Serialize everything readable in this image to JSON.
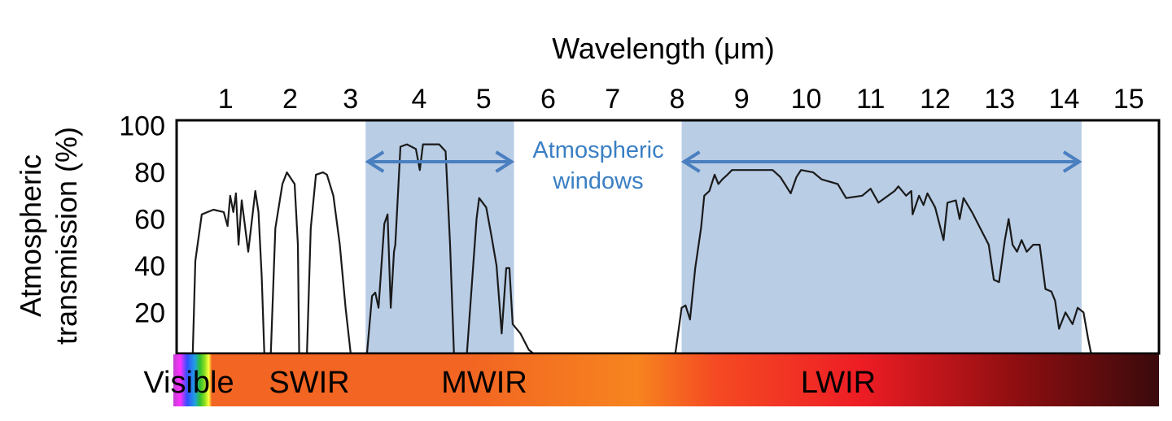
{
  "chart_data": {
    "type": "line",
    "title": "",
    "xlabel": "Wavelength (μm)",
    "ylabel_lines": [
      "Atmospheric",
      "transmission (%)"
    ],
    "xlim": [
      0.24,
      15.47
    ],
    "ylim": [
      2.4,
      102.3
    ],
    "x_ticks": [
      1,
      2,
      3,
      4,
      5,
      6,
      7,
      8,
      9,
      10,
      11,
      12,
      13,
      14,
      15
    ],
    "x_tick_labels": [
      "1",
      "2",
      "3",
      "4",
      "5",
      "6",
      "7",
      "8",
      "9",
      "10",
      "11",
      "12",
      "13",
      "14",
      "15"
    ],
    "y_ticks": [
      20,
      40,
      60,
      80,
      100
    ],
    "y_tick_labels": [
      "20",
      "40",
      "60",
      "80",
      "100"
    ],
    "grid": false,
    "windows": [
      {
        "name": "MWIR window",
        "range": [
          3.17,
          5.47
        ]
      },
      {
        "name": "LWIR window",
        "range": [
          8.07,
          14.27
        ]
      }
    ],
    "annotation": [
      "Atmospheric",
      "windows"
    ],
    "bands": [
      {
        "label": "Visible",
        "center": 0.5
      },
      {
        "label": "SWIR",
        "center": 2.3
      },
      {
        "label": "MWIR",
        "center": 5.0
      },
      {
        "label": "LWIR",
        "center": 10.5
      }
    ],
    "series": [
      {
        "name": "Atmospheric transmission",
        "segments": [
          [
            [
              0.49,
              2
            ],
            [
              0.53,
              42
            ],
            [
              0.63,
              62
            ],
            [
              0.81,
              64
            ],
            [
              0.97,
              63
            ],
            [
              1.03,
              57
            ],
            [
              1.07,
              70
            ],
            [
              1.12,
              63
            ],
            [
              1.16,
              71
            ],
            [
              1.2,
              49
            ],
            [
              1.25,
              68
            ],
            [
              1.35,
              46
            ],
            [
              1.46,
              72
            ],
            [
              1.51,
              63
            ],
            [
              1.56,
              35
            ],
            [
              1.6,
              2
            ]
          ],
          [
            [
              1.7,
              2
            ],
            [
              1.77,
              56
            ],
            [
              1.88,
              75
            ],
            [
              1.95,
              80
            ],
            [
              2.07,
              75
            ],
            [
              2.12,
              49
            ],
            [
              2.14,
              2
            ]
          ],
          [
            [
              2.26,
              2
            ],
            [
              2.32,
              56
            ],
            [
              2.4,
              79
            ],
            [
              2.51,
              80
            ],
            [
              2.57,
              79
            ],
            [
              2.67,
              70
            ],
            [
              2.77,
              49
            ],
            [
              2.86,
              22
            ],
            [
              2.94,
              2
            ]
          ],
          [
            [
              3.19,
              2
            ],
            [
              3.27,
              27
            ],
            [
              3.32,
              28.5
            ],
            [
              3.37,
              22
            ],
            [
              3.46,
              58
            ],
            [
              3.51,
              62
            ],
            [
              3.56,
              22
            ],
            [
              3.61,
              46
            ],
            [
              3.63,
              49
            ],
            [
              3.71,
              91
            ],
            [
              3.81,
              92
            ],
            [
              3.95,
              90
            ],
            [
              4.01,
              81
            ],
            [
              4.06,
              92
            ],
            [
              4.31,
              92
            ],
            [
              4.41,
              89
            ],
            [
              4.48,
              49
            ],
            [
              4.54,
              2
            ]
          ],
          [
            [
              4.74,
              2
            ],
            [
              4.89,
              60
            ],
            [
              4.93,
              69
            ],
            [
              5.04,
              65
            ],
            [
              5.12,
              53
            ],
            [
              5.2,
              40
            ],
            [
              5.28,
              11
            ],
            [
              5.35,
              39
            ],
            [
              5.4,
              39
            ],
            [
              5.45,
              15
            ],
            [
              5.57,
              11
            ],
            [
              5.7,
              4
            ],
            [
              5.79,
              2
            ]
          ],
          [
            [
              7.97,
              2
            ],
            [
              8.07,
              22
            ],
            [
              8.13,
              23
            ],
            [
              8.2,
              17
            ],
            [
              8.28,
              39
            ],
            [
              8.37,
              56
            ],
            [
              8.42,
              70
            ],
            [
              8.5,
              72
            ],
            [
              8.58,
              79
            ],
            [
              8.64,
              75
            ],
            [
              8.7,
              77
            ],
            [
              8.78,
              79
            ],
            [
              8.85,
              81
            ],
            [
              9.1,
              81
            ],
            [
              9.48,
              81
            ],
            [
              9.6,
              78
            ],
            [
              9.76,
              71
            ],
            [
              9.85,
              78
            ],
            [
              9.92,
              81
            ],
            [
              10.11,
              80
            ],
            [
              10.24,
              77
            ],
            [
              10.49,
              75
            ],
            [
              10.62,
              69
            ],
            [
              10.87,
              70
            ],
            [
              11.0,
              73
            ],
            [
              11.12,
              67
            ],
            [
              11.37,
              72
            ],
            [
              11.43,
              74
            ],
            [
              11.55,
              70
            ],
            [
              11.63,
              72
            ],
            [
              11.65,
              62
            ],
            [
              11.75,
              70
            ],
            [
              11.82,
              66
            ],
            [
              11.88,
              71
            ],
            [
              12.0,
              65
            ],
            [
              12.13,
              51
            ],
            [
              12.19,
              67
            ],
            [
              12.32,
              68
            ],
            [
              12.38,
              60
            ],
            [
              12.44,
              69
            ],
            [
              12.57,
              63
            ],
            [
              12.7,
              56
            ],
            [
              12.83,
              49
            ],
            [
              12.91,
              34
            ],
            [
              12.99,
              33
            ],
            [
              13.08,
              51
            ],
            [
              13.14,
              60
            ],
            [
              13.2,
              49
            ],
            [
              13.27,
              46
            ],
            [
              13.34,
              51
            ],
            [
              13.42,
              46
            ],
            [
              13.52,
              49
            ],
            [
              13.62,
              49
            ],
            [
              13.71,
              30
            ],
            [
              13.8,
              29
            ],
            [
              13.86,
              25
            ],
            [
              13.92,
              13
            ],
            [
              14.02,
              20
            ],
            [
              14.13,
              15
            ],
            [
              14.21,
              22
            ],
            [
              14.3,
              20
            ],
            [
              14.37,
              9
            ],
            [
              14.42,
              2
            ]
          ]
        ]
      }
    ],
    "colors": {
      "window_fill": "#b9cde5",
      "arrow": "#4a7fc0",
      "annotation": "#3a7fc4",
      "curve": "#1a1a1a"
    }
  }
}
